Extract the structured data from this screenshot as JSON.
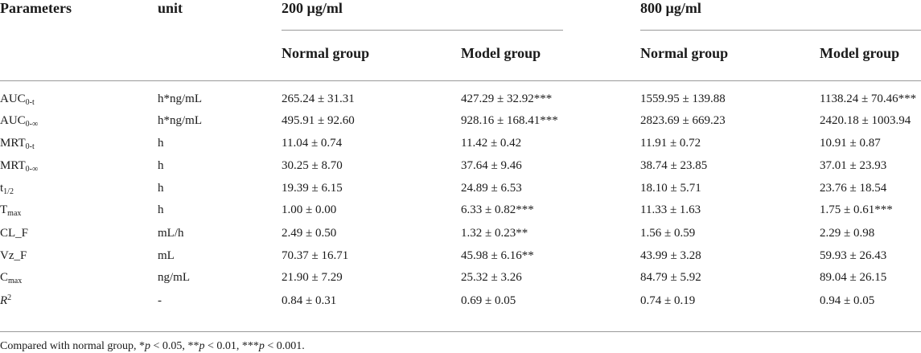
{
  "table": {
    "headers": {
      "parameters": "Parameters",
      "unit": "unit",
      "dose1": "200 µg/ml",
      "dose2": "800 µg/ml",
      "normal1": "Normal group",
      "model1": "Model group",
      "normal2": "Normal group",
      "model2": "Model group"
    },
    "rows": [
      {
        "param_main": "AUC",
        "param_sub": "0-t",
        "param_sup": "",
        "param_italic": false,
        "unit": "h*ng/mL",
        "n200": "265.24 ± 31.31",
        "m200": "427.29 ± 32.92***",
        "n800": "1559.95 ± 139.88",
        "m800": "1138.24 ± 70.46***"
      },
      {
        "param_main": "AUC",
        "param_sub": "0-∞",
        "param_sup": "",
        "param_italic": false,
        "unit": "h*ng/mL",
        "n200": "495.91 ± 92.60",
        "m200": "928.16 ± 168.41***",
        "n800": "2823.69 ± 669.23",
        "m800": "2420.18 ± 1003.94"
      },
      {
        "param_main": "MRT",
        "param_sub": "0-t",
        "param_sup": "",
        "param_italic": false,
        "unit": "h",
        "n200": "11.04 ± 0.74",
        "m200": "11.42 ± 0.42",
        "n800": "11.91 ± 0.72",
        "m800": "10.91 ± 0.87"
      },
      {
        "param_main": "MRT",
        "param_sub": "0-∞",
        "param_sup": "",
        "param_italic": false,
        "unit": "h",
        "n200": "30.25 ± 8.70",
        "m200": "37.64 ± 9.46",
        "n800": "38.74 ± 23.85",
        "m800": "37.01 ± 23.93"
      },
      {
        "param_main": "t",
        "param_sub": "1/2",
        "param_sup": "",
        "param_italic": false,
        "unit": "h",
        "n200": "19.39 ± 6.15",
        "m200": "24.89 ± 6.53",
        "n800": "18.10 ± 5.71",
        "m800": "23.76 ± 18.54"
      },
      {
        "param_main": "T",
        "param_sub": "max",
        "param_sup": "",
        "param_italic": false,
        "unit": "h",
        "n200": "1.00 ± 0.00",
        "m200": "6.33 ± 0.82***",
        "n800": "11.33 ± 1.63",
        "m800": "1.75 ± 0.61***"
      },
      {
        "param_main": "CL_F",
        "param_sub": "",
        "param_sup": "",
        "param_italic": false,
        "unit": "mL/h",
        "n200": "2.49 ± 0.50",
        "m200": "1.32 ± 0.23**",
        "n800": "1.56 ± 0.59",
        "m800": "2.29 ± 0.98"
      },
      {
        "param_main": "Vz_F",
        "param_sub": "",
        "param_sup": "",
        "param_italic": false,
        "unit": "mL",
        "n200": "70.37 ± 16.71",
        "m200": "45.98 ± 6.16**",
        "n800": "43.99 ± 3.28",
        "m800": "59.93 ± 26.43"
      },
      {
        "param_main": "C",
        "param_sub": "max",
        "param_sup": "",
        "param_italic": false,
        "unit": "ng/mL",
        "n200": "21.90 ± 7.29",
        "m200": "25.32 ± 3.26",
        "n800": "84.79 ± 5.92",
        "m800": "89.04 ± 26.15"
      },
      {
        "param_main": "R",
        "param_sub": "",
        "param_sup": "2",
        "param_italic": true,
        "unit": "-",
        "n200": "0.84 ± 0.31",
        "m200": "0.69 ± 0.05",
        "n800": "0.74 ± 0.19",
        "m800": "0.94 ± 0.05"
      }
    ]
  },
  "footnote": {
    "prefix": "Compared with normal group, ",
    "s1": "*",
    "p1": "p",
    "t1": " < 0.05, ",
    "s2": "**",
    "p2": "p",
    "t2": " < 0.01, ",
    "s3": "***",
    "p3": "p",
    "t3": " < 0.001."
  }
}
